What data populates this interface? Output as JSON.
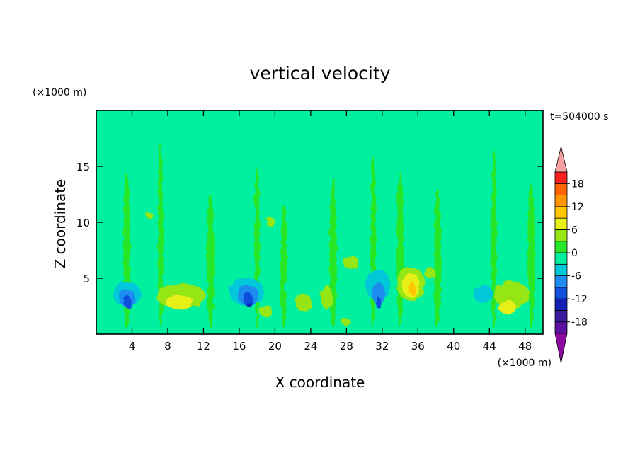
{
  "chart_data": {
    "type": "heatmap",
    "title": "vertical velocity",
    "xlabel": "X coordinate",
    "ylabel": "Z coordinate",
    "x_unit": "(×1000 m)",
    "y_unit": "(×1000 m)",
    "time_label": "t=504000 s",
    "xlim": [
      0,
      50
    ],
    "ylim": [
      0,
      20
    ],
    "x_ticks": [
      4,
      8,
      12,
      16,
      20,
      24,
      28,
      32,
      36,
      40,
      44,
      48
    ],
    "x_tick_labels": [
      "4",
      "8",
      "12",
      "16",
      "20",
      "24",
      "28",
      "32",
      "36",
      "40",
      "44",
      "48"
    ],
    "y_ticks": [
      5,
      10,
      15
    ],
    "y_tick_labels": [
      "5",
      "10",
      "15"
    ],
    "background_level": 0,
    "colorbar": {
      "levels": [
        -21,
        -18,
        -15,
        -12,
        -9,
        -6,
        -3,
        0,
        3,
        6,
        9,
        12,
        15,
        18,
        21
      ],
      "tick_values": [
        18,
        12,
        6,
        0,
        -6,
        -12,
        -18
      ],
      "tick_labels": [
        "18",
        "12",
        "6",
        "0",
        "-6",
        "-12",
        "-18"
      ],
      "bands": [
        {
          "from": -21,
          "to": -18,
          "color": "#5b0f9e"
        },
        {
          "from": -18,
          "to": -15,
          "color": "#3a1a9e"
        },
        {
          "from": -15,
          "to": -12,
          "color": "#1420b4"
        },
        {
          "from": -12,
          "to": -9,
          "color": "#1150dc"
        },
        {
          "from": -9,
          "to": -6,
          "color": "#1e8cf0"
        },
        {
          "from": -6,
          "to": -3,
          "color": "#00c8d8"
        },
        {
          "from": -3,
          "to": 0,
          "color": "#00f0a0"
        },
        {
          "from": 0,
          "to": 3,
          "color": "#28e628"
        },
        {
          "from": 3,
          "to": 6,
          "color": "#96e614"
        },
        {
          "from": 6,
          "to": 9,
          "color": "#e6f014"
        },
        {
          "from": 9,
          "to": 12,
          "color": "#ffc800"
        },
        {
          "from": 12,
          "to": 15,
          "color": "#ff9600"
        },
        {
          "from": 15,
          "to": 18,
          "color": "#ff6400"
        },
        {
          "from": 18,
          "to": 21,
          "color": "#ff1e1e"
        }
      ],
      "over_color": "#f4a0a0",
      "under_color": "#8c0aa0"
    },
    "features": [
      {
        "label": "updraft",
        "x": 3.4,
        "z": 0.4,
        "w": 0.4,
        "h": 14.0,
        "value": 1.5
      },
      {
        "label": "updraft",
        "x": 7.2,
        "z": 0.6,
        "w": 0.3,
        "h": 16.5,
        "value": 1.5
      },
      {
        "label": "updraft",
        "x": 12.8,
        "z": 0.5,
        "w": 0.4,
        "h": 12.0,
        "value": 1.5
      },
      {
        "label": "updraft",
        "x": 18.0,
        "z": 0.5,
        "w": 0.3,
        "h": 14.5,
        "value": 1.5
      },
      {
        "label": "updraft",
        "x": 21.0,
        "z": 0.5,
        "w": 0.4,
        "h": 11.0,
        "value": 1.5
      },
      {
        "label": "updraft",
        "x": 26.5,
        "z": 0.5,
        "w": 0.4,
        "h": 13.5,
        "value": 1.5
      },
      {
        "label": "updraft",
        "x": 31.0,
        "z": 0.5,
        "w": 0.3,
        "h": 15.5,
        "value": 1.5
      },
      {
        "label": "updraft",
        "x": 34.0,
        "z": 0.5,
        "w": 0.4,
        "h": 14.0,
        "value": 1.5
      },
      {
        "label": "updraft",
        "x": 38.2,
        "z": 0.5,
        "w": 0.4,
        "h": 12.5,
        "value": 1.5
      },
      {
        "label": "updraft",
        "x": 44.5,
        "z": 0.5,
        "w": 0.3,
        "h": 16.0,
        "value": 1.5
      },
      {
        "label": "updraft",
        "x": 48.7,
        "z": 0.5,
        "w": 0.4,
        "h": 13.0,
        "value": 1.5
      },
      {
        "label": "downdraft",
        "x": 3.4,
        "z": 2.5,
        "w": 1.6,
        "h": 2.2,
        "value": -4.5
      },
      {
        "label": "downdraft",
        "x": 3.5,
        "z": 2.4,
        "w": 0.9,
        "h": 1.6,
        "value": -7.5
      },
      {
        "label": "downdraft",
        "x": 3.5,
        "z": 2.4,
        "w": 0.45,
        "h": 1.0,
        "value": -10.5
      },
      {
        "label": "downdraft",
        "x": 16.8,
        "z": 2.6,
        "w": 2.0,
        "h": 2.4,
        "value": -4.5
      },
      {
        "label": "downdraft",
        "x": 17.0,
        "z": 2.6,
        "w": 1.2,
        "h": 1.8,
        "value": -7.5
      },
      {
        "label": "downdraft",
        "x": 17.0,
        "z": 2.5,
        "w": 0.55,
        "h": 1.2,
        "value": -10.5
      },
      {
        "label": "downdraft",
        "x": 17.1,
        "z": 2.4,
        "w": 0.25,
        "h": 0.5,
        "value": -13.5
      },
      {
        "label": "downdraft",
        "x": 31.5,
        "z": 3.0,
        "w": 1.4,
        "h": 2.8,
        "value": -4.5
      },
      {
        "label": "downdraft",
        "x": 31.6,
        "z": 2.6,
        "w": 0.7,
        "h": 2.0,
        "value": -7.5
      },
      {
        "label": "downdraft",
        "x": 31.6,
        "z": 2.3,
        "w": 0.3,
        "h": 1.0,
        "value": -10.5
      },
      {
        "label": "downdraft",
        "x": 43.3,
        "z": 2.8,
        "w": 1.1,
        "h": 1.6,
        "value": -4.5
      },
      {
        "label": "downdraft",
        "x": 22.0,
        "z": 3.5,
        "w": 1.0,
        "h": 1.3,
        "value": -1.5
      },
      {
        "label": "updraft",
        "x": 9.5,
        "z": 2.3,
        "w": 2.8,
        "h": 2.2,
        "value": 4.5
      },
      {
        "label": "updraft",
        "x": 9.3,
        "z": 2.2,
        "w": 1.6,
        "h": 1.3,
        "value": 7.5
      },
      {
        "label": "updraft",
        "x": 35.2,
        "z": 3.0,
        "w": 1.6,
        "h": 3.0,
        "value": 4.5
      },
      {
        "label": "updraft",
        "x": 35.2,
        "z": 3.3,
        "w": 1.0,
        "h": 2.2,
        "value": 7.5
      },
      {
        "label": "updraft",
        "x": 35.4,
        "z": 3.5,
        "w": 0.4,
        "h": 1.1,
        "value": 10.5
      },
      {
        "label": "updraft",
        "x": 46.5,
        "z": 2.3,
        "w": 2.0,
        "h": 2.4,
        "value": 4.5
      },
      {
        "label": "updraft",
        "x": 46.0,
        "z": 1.8,
        "w": 1.0,
        "h": 1.2,
        "value": 7.5
      },
      {
        "label": "updraft",
        "x": 23.2,
        "z": 2.0,
        "w": 0.9,
        "h": 1.6,
        "value": 4.5
      },
      {
        "label": "updraft",
        "x": 25.8,
        "z": 2.2,
        "w": 0.6,
        "h": 2.2,
        "value": 4.5
      },
      {
        "label": "updraft",
        "x": 28.5,
        "z": 5.8,
        "w": 0.9,
        "h": 1.2,
        "value": 4.5
      },
      {
        "label": "updraft",
        "x": 37.3,
        "z": 5.0,
        "w": 0.6,
        "h": 1.0,
        "value": 4.5
      },
      {
        "label": "updraft",
        "x": 19.0,
        "z": 1.5,
        "w": 0.7,
        "h": 1.1,
        "value": 4.5
      },
      {
        "label": "updraft",
        "x": 28.0,
        "z": 0.8,
        "w": 0.5,
        "h": 0.6,
        "value": 4.5
      },
      {
        "label": "updraft",
        "x": 19.5,
        "z": 9.6,
        "w": 0.5,
        "h": 0.8,
        "value": 4.5
      },
      {
        "label": "updraft",
        "x": 6.0,
        "z": 10.3,
        "w": 0.35,
        "h": 0.6,
        "value": 4.5
      }
    ]
  }
}
